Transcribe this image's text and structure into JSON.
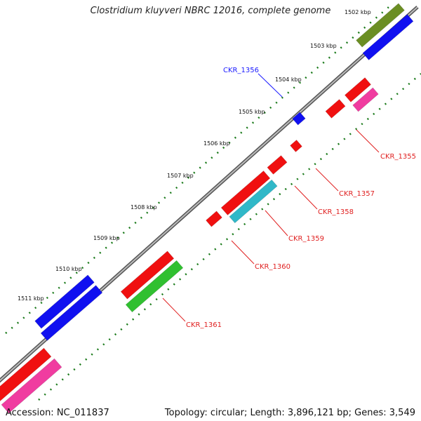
{
  "header": {
    "title": "Clostridium kluyveri NBRC 12016, complete genome"
  },
  "footer": {
    "accession": "Accession: NC_011837",
    "summary": "Topology: circular; Length: 3,896,121 bp; Genes: 3,549"
  },
  "ticks": [
    {
      "label": "1502 kbp"
    },
    {
      "label": "1503 kbp"
    },
    {
      "label": "1504 kbp"
    },
    {
      "label": "1505 kbp"
    },
    {
      "label": "1506 kbp"
    },
    {
      "label": "1507 kbp"
    },
    {
      "label": "1508 kbp"
    },
    {
      "label": "1509 kbp"
    },
    {
      "label": "1510 kbp"
    },
    {
      "label": "1511 kbp"
    }
  ],
  "genes": [
    {
      "label": "CKR_1355",
      "color": "#e02020"
    },
    {
      "label": "CKR_1356",
      "color": "#1a1aff"
    },
    {
      "label": "CKR_1357",
      "color": "#e02020"
    },
    {
      "label": "CKR_1358",
      "color": "#e02020"
    },
    {
      "label": "CKR_1359",
      "color": "#e02020"
    },
    {
      "label": "CKR_1360",
      "color": "#e02020"
    },
    {
      "label": "CKR_1361",
      "color": "#e02020"
    }
  ],
  "colors": {
    "red": "#f01010",
    "blue": "#1010f0",
    "green": "#30c030",
    "olive": "#6b8e23",
    "magenta": "#f03ca0",
    "cyan": "#30b8c8",
    "grey": "#b8b8b8",
    "tickGreen": "#1a7a1a",
    "backbone": "#888888"
  }
}
